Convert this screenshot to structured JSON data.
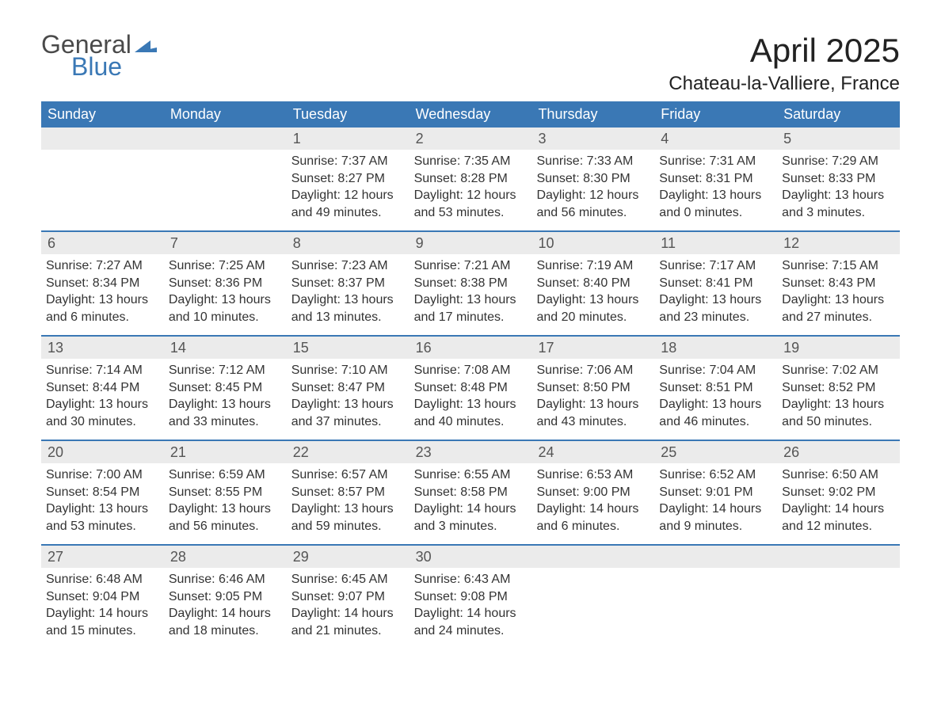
{
  "brand": {
    "line1": "General",
    "line2": "Blue",
    "flag_color": "#3a78b5"
  },
  "title": "April 2025",
  "location": "Chateau-la-Valliere, France",
  "header_bg": "#3a78b5",
  "header_text_color": "#ffffff",
  "row_divider_color": "#3a78b5",
  "daynum_bg": "#ebebeb",
  "text_color": "#333333",
  "background_color": "#ffffff",
  "day_headers": [
    "Sunday",
    "Monday",
    "Tuesday",
    "Wednesday",
    "Thursday",
    "Friday",
    "Saturday"
  ],
  "weeks": [
    [
      {
        "n": "",
        "sunrise": "",
        "sunset": "",
        "daylight": ""
      },
      {
        "n": "",
        "sunrise": "",
        "sunset": "",
        "daylight": ""
      },
      {
        "n": "1",
        "sunrise": "Sunrise: 7:37 AM",
        "sunset": "Sunset: 8:27 PM",
        "daylight": "Daylight: 12 hours and 49 minutes."
      },
      {
        "n": "2",
        "sunrise": "Sunrise: 7:35 AM",
        "sunset": "Sunset: 8:28 PM",
        "daylight": "Daylight: 12 hours and 53 minutes."
      },
      {
        "n": "3",
        "sunrise": "Sunrise: 7:33 AM",
        "sunset": "Sunset: 8:30 PM",
        "daylight": "Daylight: 12 hours and 56 minutes."
      },
      {
        "n": "4",
        "sunrise": "Sunrise: 7:31 AM",
        "sunset": "Sunset: 8:31 PM",
        "daylight": "Daylight: 13 hours and 0 minutes."
      },
      {
        "n": "5",
        "sunrise": "Sunrise: 7:29 AM",
        "sunset": "Sunset: 8:33 PM",
        "daylight": "Daylight: 13 hours and 3 minutes."
      }
    ],
    [
      {
        "n": "6",
        "sunrise": "Sunrise: 7:27 AM",
        "sunset": "Sunset: 8:34 PM",
        "daylight": "Daylight: 13 hours and 6 minutes."
      },
      {
        "n": "7",
        "sunrise": "Sunrise: 7:25 AM",
        "sunset": "Sunset: 8:36 PM",
        "daylight": "Daylight: 13 hours and 10 minutes."
      },
      {
        "n": "8",
        "sunrise": "Sunrise: 7:23 AM",
        "sunset": "Sunset: 8:37 PM",
        "daylight": "Daylight: 13 hours and 13 minutes."
      },
      {
        "n": "9",
        "sunrise": "Sunrise: 7:21 AM",
        "sunset": "Sunset: 8:38 PM",
        "daylight": "Daylight: 13 hours and 17 minutes."
      },
      {
        "n": "10",
        "sunrise": "Sunrise: 7:19 AM",
        "sunset": "Sunset: 8:40 PM",
        "daylight": "Daylight: 13 hours and 20 minutes."
      },
      {
        "n": "11",
        "sunrise": "Sunrise: 7:17 AM",
        "sunset": "Sunset: 8:41 PM",
        "daylight": "Daylight: 13 hours and 23 minutes."
      },
      {
        "n": "12",
        "sunrise": "Sunrise: 7:15 AM",
        "sunset": "Sunset: 8:43 PM",
        "daylight": "Daylight: 13 hours and 27 minutes."
      }
    ],
    [
      {
        "n": "13",
        "sunrise": "Sunrise: 7:14 AM",
        "sunset": "Sunset: 8:44 PM",
        "daylight": "Daylight: 13 hours and 30 minutes."
      },
      {
        "n": "14",
        "sunrise": "Sunrise: 7:12 AM",
        "sunset": "Sunset: 8:45 PM",
        "daylight": "Daylight: 13 hours and 33 minutes."
      },
      {
        "n": "15",
        "sunrise": "Sunrise: 7:10 AM",
        "sunset": "Sunset: 8:47 PM",
        "daylight": "Daylight: 13 hours and 37 minutes."
      },
      {
        "n": "16",
        "sunrise": "Sunrise: 7:08 AM",
        "sunset": "Sunset: 8:48 PM",
        "daylight": "Daylight: 13 hours and 40 minutes."
      },
      {
        "n": "17",
        "sunrise": "Sunrise: 7:06 AM",
        "sunset": "Sunset: 8:50 PM",
        "daylight": "Daylight: 13 hours and 43 minutes."
      },
      {
        "n": "18",
        "sunrise": "Sunrise: 7:04 AM",
        "sunset": "Sunset: 8:51 PM",
        "daylight": "Daylight: 13 hours and 46 minutes."
      },
      {
        "n": "19",
        "sunrise": "Sunrise: 7:02 AM",
        "sunset": "Sunset: 8:52 PM",
        "daylight": "Daylight: 13 hours and 50 minutes."
      }
    ],
    [
      {
        "n": "20",
        "sunrise": "Sunrise: 7:00 AM",
        "sunset": "Sunset: 8:54 PM",
        "daylight": "Daylight: 13 hours and 53 minutes."
      },
      {
        "n": "21",
        "sunrise": "Sunrise: 6:59 AM",
        "sunset": "Sunset: 8:55 PM",
        "daylight": "Daylight: 13 hours and 56 minutes."
      },
      {
        "n": "22",
        "sunrise": "Sunrise: 6:57 AM",
        "sunset": "Sunset: 8:57 PM",
        "daylight": "Daylight: 13 hours and 59 minutes."
      },
      {
        "n": "23",
        "sunrise": "Sunrise: 6:55 AM",
        "sunset": "Sunset: 8:58 PM",
        "daylight": "Daylight: 14 hours and 3 minutes."
      },
      {
        "n": "24",
        "sunrise": "Sunrise: 6:53 AM",
        "sunset": "Sunset: 9:00 PM",
        "daylight": "Daylight: 14 hours and 6 minutes."
      },
      {
        "n": "25",
        "sunrise": "Sunrise: 6:52 AM",
        "sunset": "Sunset: 9:01 PM",
        "daylight": "Daylight: 14 hours and 9 minutes."
      },
      {
        "n": "26",
        "sunrise": "Sunrise: 6:50 AM",
        "sunset": "Sunset: 9:02 PM",
        "daylight": "Daylight: 14 hours and 12 minutes."
      }
    ],
    [
      {
        "n": "27",
        "sunrise": "Sunrise: 6:48 AM",
        "sunset": "Sunset: 9:04 PM",
        "daylight": "Daylight: 14 hours and 15 minutes."
      },
      {
        "n": "28",
        "sunrise": "Sunrise: 6:46 AM",
        "sunset": "Sunset: 9:05 PM",
        "daylight": "Daylight: 14 hours and 18 minutes."
      },
      {
        "n": "29",
        "sunrise": "Sunrise: 6:45 AM",
        "sunset": "Sunset: 9:07 PM",
        "daylight": "Daylight: 14 hours and 21 minutes."
      },
      {
        "n": "30",
        "sunrise": "Sunrise: 6:43 AM",
        "sunset": "Sunset: 9:08 PM",
        "daylight": "Daylight: 14 hours and 24 minutes."
      },
      {
        "n": "",
        "sunrise": "",
        "sunset": "",
        "daylight": ""
      },
      {
        "n": "",
        "sunrise": "",
        "sunset": "",
        "daylight": ""
      },
      {
        "n": "",
        "sunrise": "",
        "sunset": "",
        "daylight": ""
      }
    ]
  ]
}
